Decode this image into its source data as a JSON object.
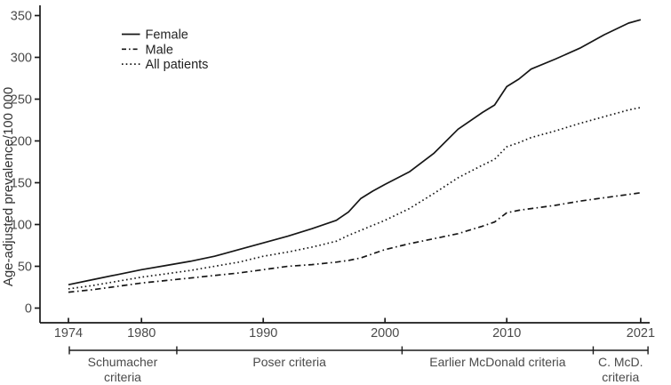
{
  "chart_data": {
    "type": "line",
    "title": "",
    "xlabel": "",
    "ylabel": "Age-adjusted prevalence/100 000",
    "ylim": [
      0,
      350
    ],
    "yticks": [
      0,
      50,
      100,
      150,
      200,
      250,
      300,
      350
    ],
    "xticks": [
      1974,
      1980,
      1990,
      2000,
      2010,
      2021
    ],
    "xlim": [
      1974,
      2021
    ],
    "grid": false,
    "legend_position": "top-left",
    "x_years": [
      1974,
      1976,
      1978,
      1980,
      1982,
      1984,
      1986,
      1988,
      1990,
      1992,
      1994,
      1996,
      1997,
      1998,
      1999,
      2000,
      2002,
      2004,
      2006,
      2008,
      2009,
      2010,
      2011,
      2012,
      2014,
      2016,
      2018,
      2020,
      2021
    ],
    "series": [
      {
        "name": "Female",
        "line_style": "solid",
        "values": [
          28,
          34,
          40,
          46,
          51,
          56,
          62,
          70,
          78,
          86,
          95,
          105,
          115,
          131,
          140,
          148,
          163,
          185,
          214,
          234,
          243,
          265,
          274,
          286,
          298,
          311,
          327,
          341,
          345
        ]
      },
      {
        "name": "Male",
        "line_style": "dash-dot",
        "values": [
          19,
          22,
          26,
          30,
          33,
          36,
          39,
          42,
          46,
          50,
          52,
          55,
          57,
          60,
          65,
          70,
          77,
          83,
          89,
          98,
          103,
          114,
          117,
          119,
          123,
          128,
          132,
          136,
          138
        ]
      },
      {
        "name": "All patients",
        "line_style": "dotted",
        "values": [
          23,
          27,
          32,
          37,
          41,
          45,
          50,
          55,
          62,
          67,
          73,
          80,
          87,
          93,
          99,
          105,
          119,
          137,
          156,
          171,
          178,
          193,
          198,
          204,
          212,
          221,
          229,
          237,
          240
        ]
      }
    ],
    "diagnostic_criteria_periods": [
      {
        "label_lines": [
          "Schumacher",
          "criteria"
        ],
        "start_year": 1974,
        "end_year": 1982.9
      },
      {
        "label_lines": [
          "Poser criteria"
        ],
        "start_year": 1982.9,
        "end_year": 2001.4
      },
      {
        "label_lines": [
          "Earlier McDonald criteria"
        ],
        "start_year": 2001.4,
        "end_year": 2017.1
      },
      {
        "label_lines": [
          "C. McD.",
          "criteria"
        ],
        "start_year": 2017.1,
        "end_year": 2021.6
      }
    ],
    "colors": {
      "line": "#161616",
      "axis": "#1a1a1a",
      "tick_text": "#4a4a4a",
      "legend_text": "#222222"
    }
  }
}
